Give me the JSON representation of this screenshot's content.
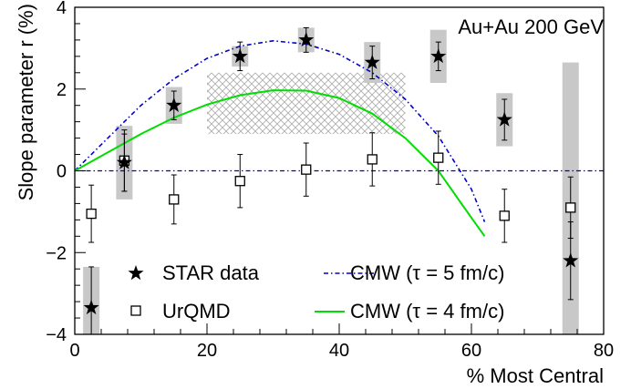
{
  "chart_data": {
    "type": "scatter",
    "xlabel": "% Most Central",
    "ylabel": "Slope parameter r (%)",
    "xlim": [
      0,
      80
    ],
    "ylim": [
      -4,
      4
    ],
    "xticks": [
      "0",
      "20",
      "40",
      "60",
      "80"
    ],
    "yticks": [
      "−4",
      "−2",
      "0",
      "2",
      "4"
    ],
    "annotation": "Au+Au 200 GeV",
    "grid": false,
    "legend_position": "bottom-left",
    "zero_line": {
      "y": 0,
      "style": "dash-dot",
      "color": "#0000cc"
    },
    "series": [
      {
        "name": "STAR data",
        "marker": "star",
        "color": "#000000",
        "sys_color": "#c8c8c8",
        "points": [
          {
            "x": 2.5,
            "y": -3.35,
            "err": 1.0,
            "sys": 1.0
          },
          {
            "x": 7.5,
            "y": 0.2,
            "err": 0.7,
            "sys": 0.9
          },
          {
            "x": 15,
            "y": 1.6,
            "err": 0.35,
            "sys": 0.45
          },
          {
            "x": 25,
            "y": 2.8,
            "err": 0.35,
            "sys": 0.25
          },
          {
            "x": 35,
            "y": 3.2,
            "err": 0.3,
            "sys": 0.3
          },
          {
            "x": 45,
            "y": 2.65,
            "err": 0.4,
            "sys": 0.5
          },
          {
            "x": 55,
            "y": 2.8,
            "err": 0.35,
            "sys": 0.65
          },
          {
            "x": 65,
            "y": 1.25,
            "err": 0.5,
            "sys": 0.65
          },
          {
            "x": 75,
            "y": -2.2,
            "err": 0.95,
            "sys": 4.85
          }
        ]
      },
      {
        "name": "UrQMD",
        "marker": "open-square",
        "color": "#000000",
        "points": [
          {
            "x": 2.5,
            "y": -1.05,
            "err": 0.7
          },
          {
            "x": 7.5,
            "y": 0.25,
            "err": 0.75
          },
          {
            "x": 15,
            "y": -0.7,
            "err": 0.6
          },
          {
            "x": 25,
            "y": -0.25,
            "err": 0.65
          },
          {
            "x": 35,
            "y": 0.03,
            "err": 0.65
          },
          {
            "x": 45,
            "y": 0.28,
            "err": 0.65
          },
          {
            "x": 55,
            "y": 0.32,
            "err": 0.65
          },
          {
            "x": 65,
            "y": -1.1,
            "err": 0.65
          },
          {
            "x": 75,
            "y": -0.9,
            "err": 0.75
          }
        ]
      },
      {
        "name": "CMW (τ = 5 fm/c)",
        "type": "line",
        "style": "dash-dot",
        "color": "#0000cc",
        "x": [
          0,
          5,
          10,
          15,
          20,
          25,
          30,
          35,
          40,
          45,
          50,
          55,
          60,
          62
        ],
        "y": [
          0,
          0.8,
          1.6,
          2.25,
          2.75,
          3.05,
          3.18,
          3.1,
          2.85,
          2.4,
          1.75,
          0.85,
          -0.45,
          -1.25
        ]
      },
      {
        "name": "CMW (τ = 4 fm/c)",
        "type": "line",
        "style": "solid",
        "color": "#00dd00",
        "x": [
          0,
          5,
          10,
          15,
          20,
          25,
          30,
          35,
          40,
          45,
          50,
          55,
          60,
          62
        ],
        "y": [
          0,
          0.45,
          0.9,
          1.3,
          1.62,
          1.85,
          1.97,
          1.96,
          1.78,
          1.4,
          0.8,
          0.0,
          -1.15,
          -1.6
        ]
      }
    ],
    "hatched_band": {
      "x": [
        20,
        50
      ],
      "y": [
        0.9,
        2.4
      ]
    }
  }
}
